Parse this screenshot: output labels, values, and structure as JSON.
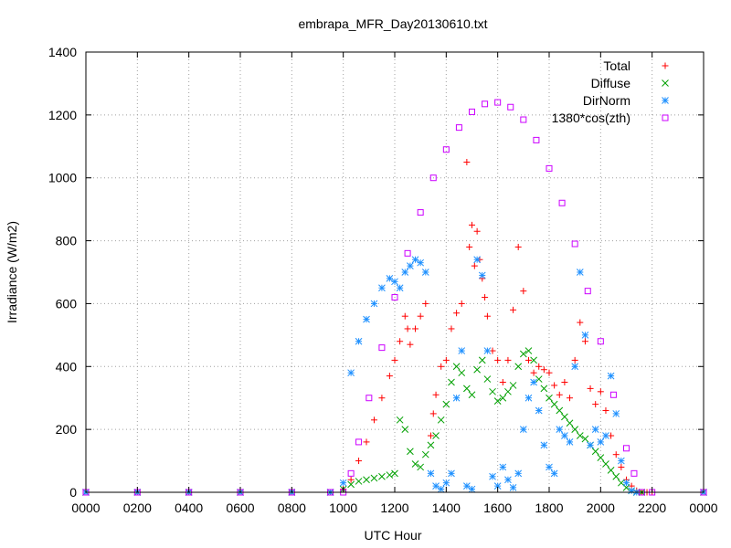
{
  "chart_data": {
    "type": "scatter",
    "title": "embrapa_MFR_Day20130610.txt",
    "xlabel": "UTC Hour",
    "ylabel": "Irradiance (W/m2)",
    "xlim": [
      0,
      24
    ],
    "ylim": [
      0,
      1400
    ],
    "x_ticks": [
      0,
      2,
      4,
      6,
      8,
      10,
      12,
      14,
      16,
      18,
      20,
      22,
      24
    ],
    "x_tick_labels": [
      "0000",
      "0200",
      "0400",
      "0600",
      "0800",
      "1000",
      "1200",
      "1400",
      "1600",
      "1800",
      "2000",
      "2200",
      "0000"
    ],
    "y_ticks": [
      0,
      200,
      400,
      600,
      800,
      1000,
      1200,
      1400
    ],
    "y_tick_labels": [
      "0",
      "200",
      "400",
      "600",
      "800",
      "1000",
      "1200",
      "1400"
    ],
    "grid": true,
    "legend_position": "top-right",
    "series": [
      {
        "name": "Total",
        "marker": "+",
        "color": "#ff0000",
        "x": [
          0,
          2,
          4,
          6,
          8,
          9.5,
          10.0,
          10.3,
          10.6,
          10.9,
          11.2,
          11.5,
          11.8,
          12.0,
          12.2,
          12.4,
          12.5,
          12.6,
          12.8,
          13.0,
          13.2,
          13.4,
          13.5,
          13.6,
          13.8,
          14.0,
          14.2,
          14.4,
          14.6,
          14.8,
          14.9,
          15.0,
          15.1,
          15.2,
          15.3,
          15.4,
          15.5,
          15.6,
          15.8,
          16.0,
          16.2,
          16.4,
          16.6,
          16.8,
          17.0,
          17.2,
          17.4,
          17.6,
          17.8,
          18.0,
          18.2,
          18.4,
          18.6,
          18.8,
          19.0,
          19.2,
          19.4,
          19.6,
          19.8,
          20.0,
          20.2,
          20.4,
          20.6,
          20.8,
          21.0,
          21.2,
          21.4,
          21.6,
          21.8,
          22.0,
          24
        ],
        "y": [
          0,
          0,
          0,
          0,
          0,
          0,
          10,
          40,
          100,
          160,
          230,
          300,
          370,
          420,
          480,
          560,
          520,
          470,
          520,
          560,
          600,
          180,
          250,
          310,
          400,
          420,
          520,
          570,
          600,
          1050,
          780,
          850,
          720,
          830,
          740,
          680,
          620,
          560,
          450,
          420,
          350,
          420,
          580,
          780,
          640,
          420,
          380,
          400,
          390,
          380,
          340,
          310,
          350,
          300,
          420,
          540,
          480,
          330,
          280,
          320,
          260,
          180,
          120,
          80,
          40,
          20,
          5,
          0,
          0,
          0,
          0
        ]
      },
      {
        "name": "Diffuse",
        "marker": "x",
        "color": "#00a000",
        "x": [
          0,
          2,
          4,
          6,
          8,
          9.5,
          10.0,
          10.3,
          10.6,
          10.9,
          11.2,
          11.5,
          11.8,
          12.0,
          12.2,
          12.4,
          12.6,
          12.8,
          13.0,
          13.2,
          13.4,
          13.6,
          13.8,
          14.0,
          14.2,
          14.4,
          14.6,
          14.8,
          15.0,
          15.2,
          15.4,
          15.6,
          15.8,
          16.0,
          16.2,
          16.4,
          16.6,
          16.8,
          17.0,
          17.2,
          17.4,
          17.6,
          17.8,
          18.0,
          18.2,
          18.4,
          18.6,
          18.8,
          19.0,
          19.2,
          19.4,
          19.6,
          19.8,
          20.0,
          20.2,
          20.4,
          20.6,
          20.8,
          21.0,
          21.2,
          21.4,
          21.6,
          24
        ],
        "y": [
          0,
          0,
          0,
          0,
          0,
          0,
          10,
          25,
          35,
          40,
          45,
          50,
          55,
          60,
          230,
          200,
          130,
          90,
          80,
          120,
          150,
          180,
          230,
          280,
          350,
          400,
          380,
          330,
          310,
          390,
          420,
          360,
          320,
          290,
          300,
          320,
          340,
          400,
          440,
          450,
          420,
          360,
          330,
          300,
          280,
          260,
          240,
          220,
          200,
          180,
          170,
          150,
          130,
          110,
          90,
          70,
          50,
          30,
          15,
          5,
          0,
          0,
          0
        ]
      },
      {
        "name": "DirNorm",
        "marker": "*",
        "color": "#1e90ff",
        "x": [
          0,
          2,
          4,
          6,
          8,
          9.5,
          10.0,
          10.3,
          10.6,
          10.9,
          11.2,
          11.5,
          11.8,
          12.0,
          12.2,
          12.4,
          12.6,
          12.8,
          13.0,
          13.2,
          13.4,
          13.6,
          13.8,
          14.0,
          14.2,
          14.4,
          14.6,
          14.8,
          15.0,
          15.2,
          15.4,
          15.6,
          15.8,
          16.0,
          16.2,
          16.4,
          16.6,
          16.8,
          17.0,
          17.2,
          17.4,
          17.6,
          17.8,
          18.0,
          18.2,
          18.4,
          18.6,
          18.8,
          19.0,
          19.2,
          19.4,
          19.6,
          19.8,
          20.0,
          20.2,
          20.4,
          20.6,
          20.8,
          21.0,
          21.2,
          21.4,
          24
        ],
        "y": [
          0,
          0,
          0,
          0,
          0,
          0,
          30,
          380,
          480,
          550,
          600,
          650,
          680,
          670,
          650,
          700,
          720,
          740,
          730,
          700,
          60,
          20,
          10,
          30,
          60,
          300,
          450,
          20,
          10,
          740,
          690,
          450,
          50,
          20,
          80,
          40,
          15,
          60,
          200,
          300,
          350,
          260,
          150,
          80,
          60,
          200,
          180,
          160,
          400,
          700,
          500,
          150,
          200,
          160,
          180,
          370,
          250,
          100,
          30,
          5,
          0,
          0
        ]
      },
      {
        "name": "1380*cos(zth)",
        "marker": "square",
        "color": "#cc00ff",
        "x": [
          0,
          2,
          4,
          6,
          8,
          9.5,
          10.0,
          10.3,
          10.6,
          11.0,
          11.5,
          12.0,
          12.5,
          13.0,
          13.5,
          14.0,
          14.5,
          15.0,
          15.5,
          16.0,
          16.5,
          17.0,
          17.5,
          18.0,
          18.5,
          19.0,
          19.5,
          20.0,
          20.5,
          21.0,
          21.3,
          21.6,
          22.0,
          24
        ],
        "y": [
          0,
          0,
          0,
          0,
          0,
          0,
          0,
          60,
          160,
          300,
          460,
          620,
          760,
          890,
          1000,
          1090,
          1160,
          1210,
          1235,
          1240,
          1225,
          1185,
          1120,
          1030,
          920,
          790,
          640,
          480,
          310,
          140,
          60,
          0,
          0,
          0
        ]
      }
    ]
  }
}
